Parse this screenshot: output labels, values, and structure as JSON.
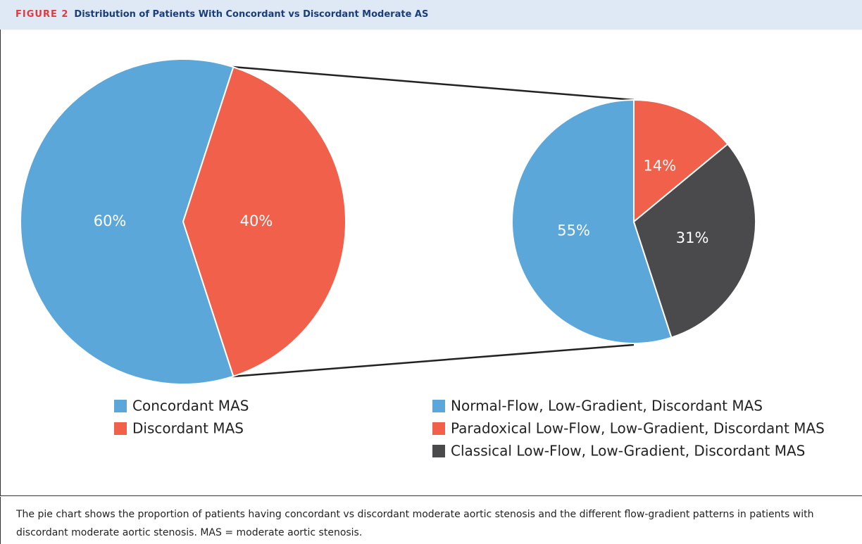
{
  "figure": {
    "label": "FIGURE 2",
    "title": "Distribution of Patients With Concordant vs Discordant Moderate AS"
  },
  "chart_data": [
    {
      "type": "pie",
      "categories": [
        "Concordant MAS",
        "Discordant MAS"
      ],
      "values": [
        60,
        40
      ],
      "value_labels": [
        "60%",
        "40%"
      ],
      "colors": [
        "#5ba7d9",
        "#f0604a"
      ]
    },
    {
      "type": "pie",
      "categories": [
        "Normal-Flow, Low-Gradient, Discordant MAS",
        "Paradoxical Low-Flow, Low-Gradient, Discordant MAS",
        "Classical Low-Flow, Low-Gradient, Discordant MAS"
      ],
      "values": [
        55,
        14,
        31
      ],
      "value_labels": [
        "55%",
        "14%",
        "31%"
      ],
      "colors": [
        "#5ba7d9",
        "#f0604a",
        "#4a4a4c"
      ]
    }
  ],
  "caption": "The pie chart shows the proportion of patients having concordant vs discordant moderate aortic stenosis and the different flow-gradient patterns in patients with discordant moderate aortic stenosis. MAS = moderate aortic stenosis."
}
